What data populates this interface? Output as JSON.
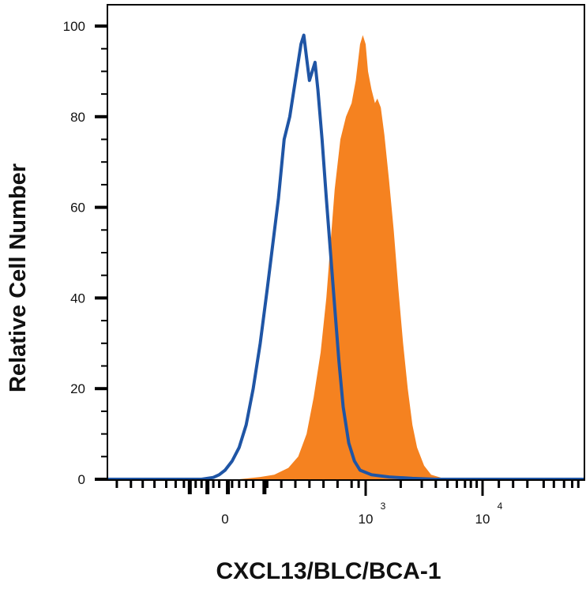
{
  "chart_data": {
    "type": "area",
    "title": "",
    "xlabel": "CXCL13/BLC/BCA-1",
    "ylabel": "Relative Cell Number",
    "x_scale": "biexponential",
    "ylim": [
      0,
      100
    ],
    "y_ticks": [
      0,
      20,
      40,
      60,
      80,
      100
    ],
    "x_ticks": [
      {
        "base": "0",
        "exp": ""
      },
      {
        "base": "10",
        "exp": "3"
      },
      {
        "base": "10",
        "exp": "4"
      }
    ],
    "grid": false,
    "legend": "none",
    "series": [
      {
        "style": "filled",
        "color": "#f58220",
        "points": [
          [
            -1,
            0
          ],
          [
            -0.3,
            0
          ],
          [
            0.1,
            0
          ],
          [
            0.25,
            0.5
          ],
          [
            0.35,
            1
          ],
          [
            0.45,
            2.5
          ],
          [
            0.52,
            5
          ],
          [
            0.58,
            10
          ],
          [
            0.63,
            18
          ],
          [
            0.68,
            28
          ],
          [
            0.72,
            40
          ],
          [
            0.75,
            52
          ],
          [
            0.78,
            64
          ],
          [
            0.82,
            75
          ],
          [
            0.86,
            80
          ],
          [
            0.9,
            83
          ],
          [
            0.93,
            88
          ],
          [
            0.96,
            96
          ],
          [
            0.98,
            98
          ],
          [
            1.0,
            96
          ],
          [
            1.02,
            90
          ],
          [
            1.05,
            86
          ],
          [
            1.08,
            83
          ],
          [
            1.1,
            84
          ],
          [
            1.13,
            82
          ],
          [
            1.16,
            76
          ],
          [
            1.2,
            66
          ],
          [
            1.24,
            55
          ],
          [
            1.28,
            42
          ],
          [
            1.32,
            30
          ],
          [
            1.36,
            20
          ],
          [
            1.4,
            12
          ],
          [
            1.44,
            7
          ],
          [
            1.5,
            3
          ],
          [
            1.56,
            1
          ],
          [
            1.65,
            0.3
          ],
          [
            1.75,
            0
          ],
          [
            2.5,
            0
          ]
        ]
      },
      {
        "style": "line",
        "color": "#1f55a5",
        "points": [
          [
            -1,
            0
          ],
          [
            -0.4,
            0
          ],
          [
            -0.2,
            0
          ],
          [
            -0.1,
            0.4
          ],
          [
            -0.05,
            1
          ],
          [
            0.0,
            2
          ],
          [
            0.05,
            4
          ],
          [
            0.1,
            7
          ],
          [
            0.15,
            12
          ],
          [
            0.2,
            20
          ],
          [
            0.25,
            30
          ],
          [
            0.3,
            42
          ],
          [
            0.34,
            52
          ],
          [
            0.38,
            62
          ],
          [
            0.42,
            75
          ],
          [
            0.46,
            80
          ],
          [
            0.5,
            88
          ],
          [
            0.54,
            96
          ],
          [
            0.56,
            98
          ],
          [
            0.58,
            93
          ],
          [
            0.6,
            88
          ],
          [
            0.62,
            90
          ],
          [
            0.64,
            92
          ],
          [
            0.66,
            86
          ],
          [
            0.69,
            75
          ],
          [
            0.72,
            62
          ],
          [
            0.75,
            50
          ],
          [
            0.78,
            38
          ],
          [
            0.81,
            26
          ],
          [
            0.84,
            16
          ],
          [
            0.88,
            8
          ],
          [
            0.92,
            4
          ],
          [
            0.96,
            2
          ],
          [
            1.05,
            1
          ],
          [
            1.2,
            0.5
          ],
          [
            1.4,
            0.2
          ],
          [
            1.6,
            0
          ],
          [
            2.5,
            0
          ]
        ]
      }
    ]
  }
}
